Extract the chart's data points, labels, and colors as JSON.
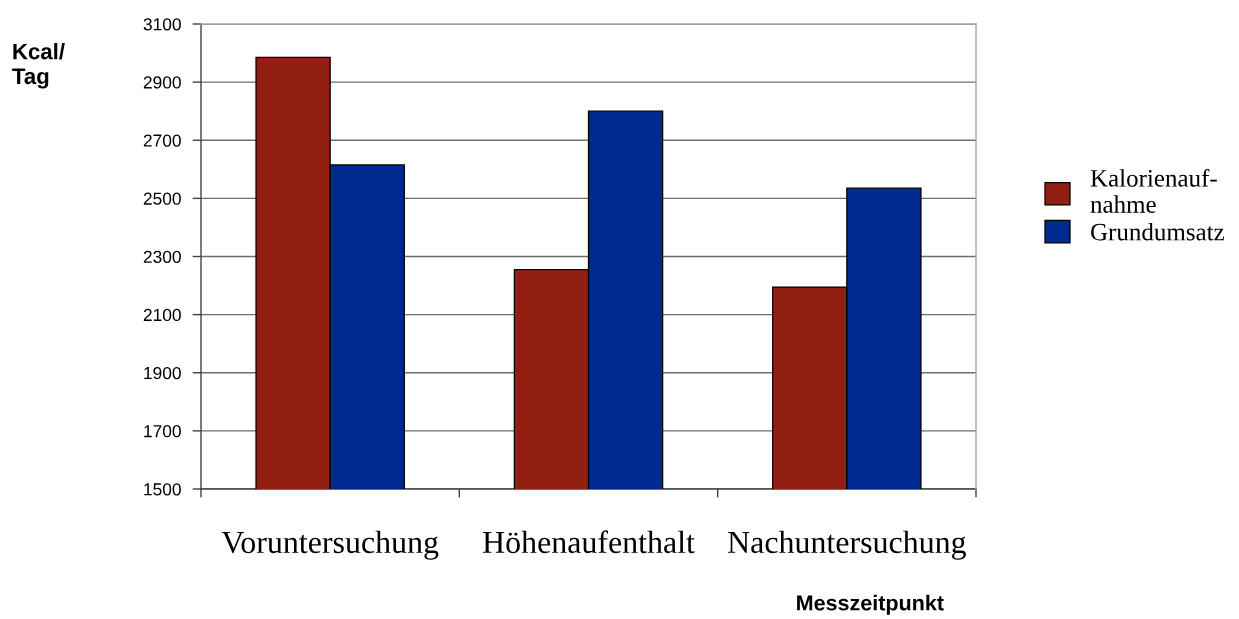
{
  "chart_data": {
    "type": "bar",
    "categories": [
      "Voruntersuchung",
      "Höhenaufenthalt",
      "Nachuntersuchung"
    ],
    "series": [
      {
        "name": "Kalorienauf-\nnahme",
        "color": "#931f12",
        "values": [
          2985,
          2255,
          2195
        ]
      },
      {
        "name": "Grundumsatz",
        "color": "#002a8f",
        "values": [
          2615,
          2800,
          2535
        ]
      }
    ],
    "xlabel": "Messzeitpunkt",
    "ylabel": "Kcal/\nTag",
    "ylim": [
      1500,
      3100
    ],
    "yticks": [
      1500,
      1700,
      1900,
      2100,
      2300,
      2500,
      2700,
      2900,
      3100
    ],
    "grid": "y",
    "legend": "right"
  }
}
